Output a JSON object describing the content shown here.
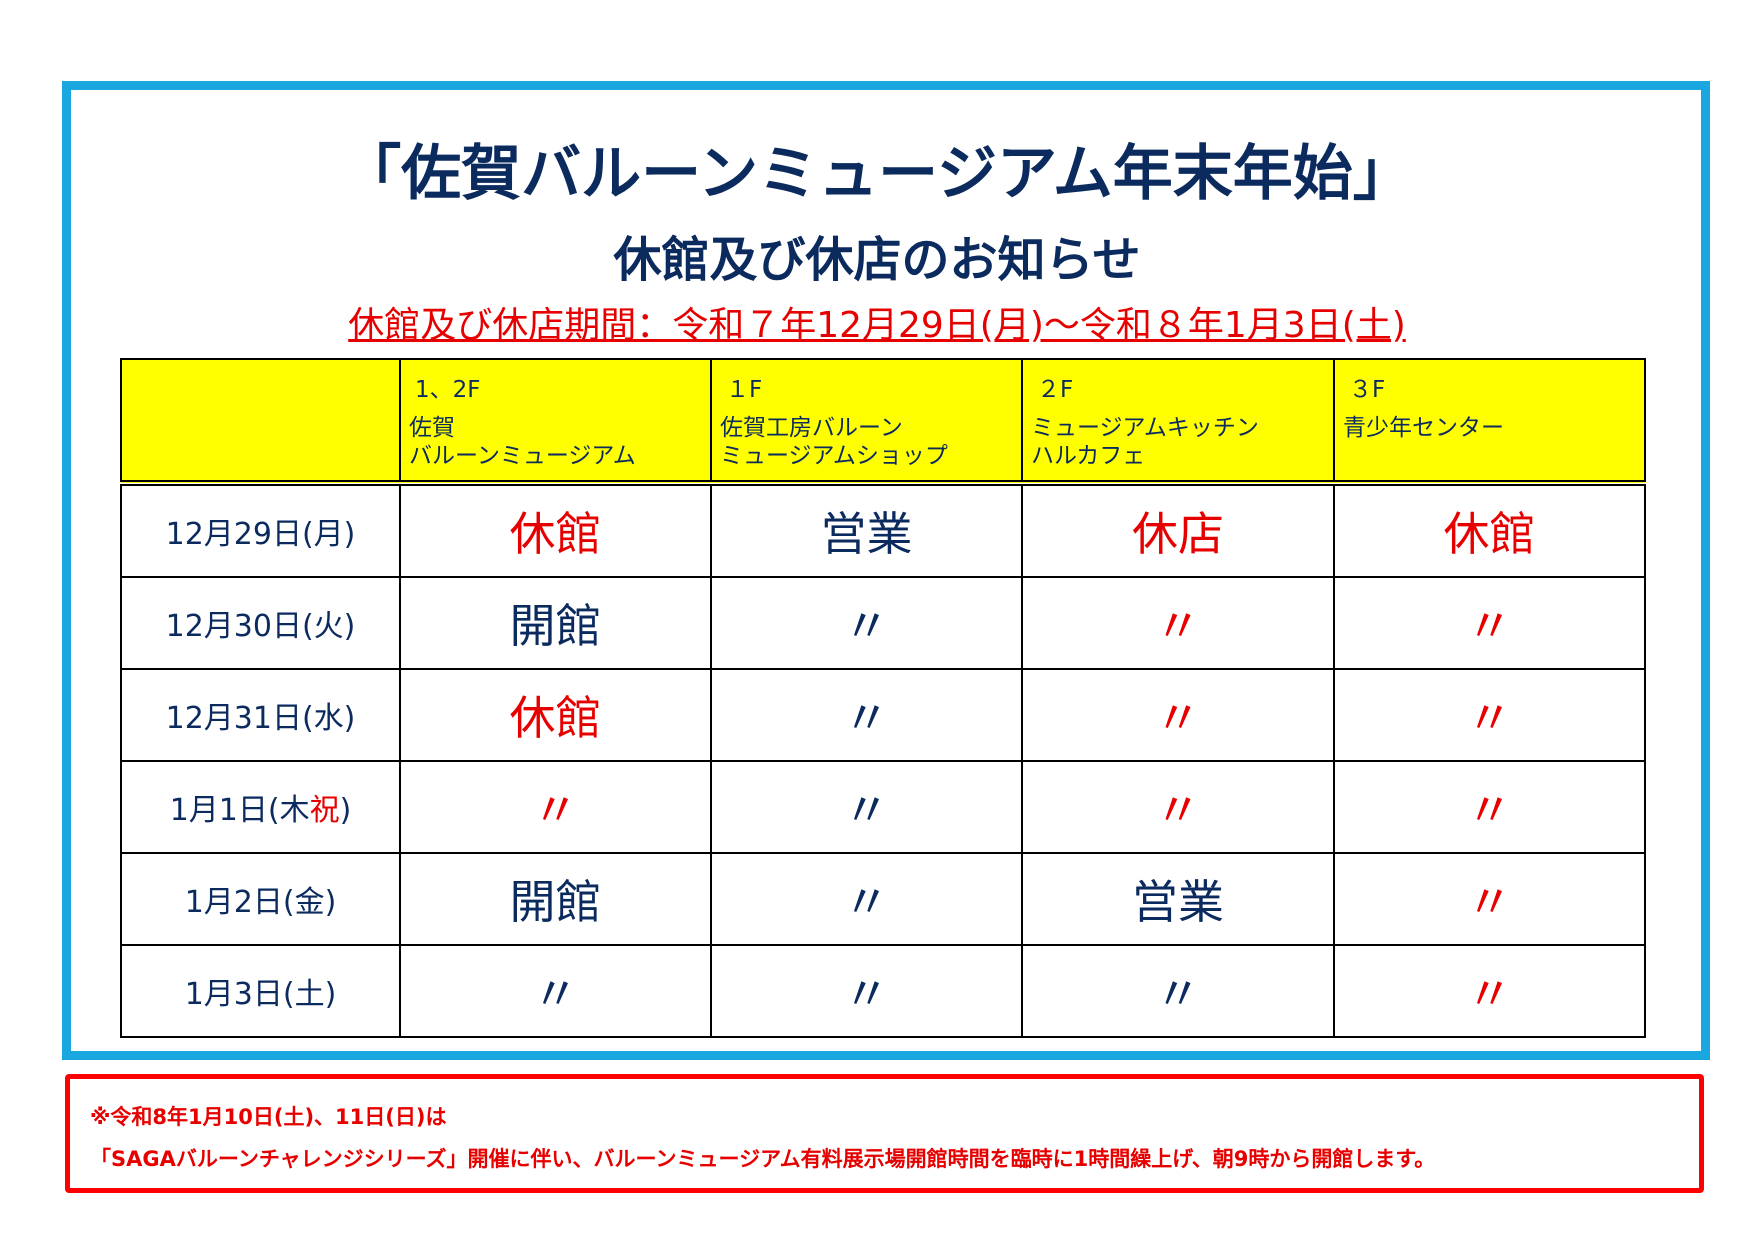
{
  "header": {
    "title": "「佐賀バルーンミュージアム年末年始」",
    "subtitle": "休館及び休店のお知らせ",
    "period": "休館及び休店期間：令和７年12月29日(月)～令和８年1月3日(土)"
  },
  "table": {
    "columns": [
      {
        "floor": "1、2F",
        "name": [
          "佐賀",
          "バルーンミュージアム"
        ]
      },
      {
        "floor": "１F",
        "name": [
          "佐賀工房バルーン",
          "ミュージアムショップ"
        ]
      },
      {
        "floor": "２F",
        "name": [
          "ミュージアムキッチン",
          "ハルカフェ"
        ]
      },
      {
        "floor": "３F",
        "name": [
          "青少年センター"
        ]
      }
    ],
    "rows": [
      {
        "date": [
          {
            "text": "12月29日(月)",
            "color": "#0b2a5e"
          }
        ],
        "cells": [
          {
            "text": "休館",
            "color": "#e60000"
          },
          {
            "text": "営業",
            "color": "#0b2a5e"
          },
          {
            "text": "休店",
            "color": "#e60000"
          },
          {
            "text": "休館",
            "color": "#e60000"
          }
        ]
      },
      {
        "date": [
          {
            "text": "12月30日(火)",
            "color": "#0b2a5e"
          }
        ],
        "cells": [
          {
            "text": "開館",
            "color": "#0b2a5e"
          },
          {
            "text": "〃",
            "color": "#0b2a5e"
          },
          {
            "text": "〃",
            "color": "#e60000"
          },
          {
            "text": "〃",
            "color": "#e60000"
          }
        ]
      },
      {
        "date": [
          {
            "text": "12月31日(水)",
            "color": "#0b2a5e"
          }
        ],
        "cells": [
          {
            "text": "休館",
            "color": "#e60000"
          },
          {
            "text": "〃",
            "color": "#0b2a5e"
          },
          {
            "text": "〃",
            "color": "#e60000"
          },
          {
            "text": "〃",
            "color": "#e60000"
          }
        ]
      },
      {
        "date": [
          {
            "text": "1月1日(木",
            "color": "#0b2a5e"
          },
          {
            "text": "祝",
            "color": "#e60000"
          },
          {
            "text": ")",
            "color": "#0b2a5e"
          }
        ],
        "cells": [
          {
            "text": "〃",
            "color": "#e60000"
          },
          {
            "text": "〃",
            "color": "#0b2a5e"
          },
          {
            "text": "〃",
            "color": "#e60000"
          },
          {
            "text": "〃",
            "color": "#e60000"
          }
        ]
      },
      {
        "date": [
          {
            "text": "1月2日(金)",
            "color": "#0b2a5e"
          }
        ],
        "cells": [
          {
            "text": "開館",
            "color": "#0b2a5e"
          },
          {
            "text": "〃",
            "color": "#0b2a5e"
          },
          {
            "text": "営業",
            "color": "#0b2a5e"
          },
          {
            "text": "〃",
            "color": "#e60000"
          }
        ]
      },
      {
        "date": [
          {
            "text": "1月3日(土)",
            "color": "#0b2a5e"
          }
        ],
        "cells": [
          {
            "text": "〃",
            "color": "#0b2a5e"
          },
          {
            "text": "〃",
            "color": "#0b2a5e"
          },
          {
            "text": "〃",
            "color": "#0b2a5e"
          },
          {
            "text": "〃",
            "color": "#e60000"
          }
        ]
      }
    ]
  },
  "notice": {
    "lines": [
      "※令和8年1月10日(土)、11日(日)は",
      "「SAGAバルーンチャレンジシリーズ」開催に伴い、バルーンミュージアム有料展示場開館時間を臨時に1時間繰上げ、朝9時から開館します。"
    ]
  }
}
